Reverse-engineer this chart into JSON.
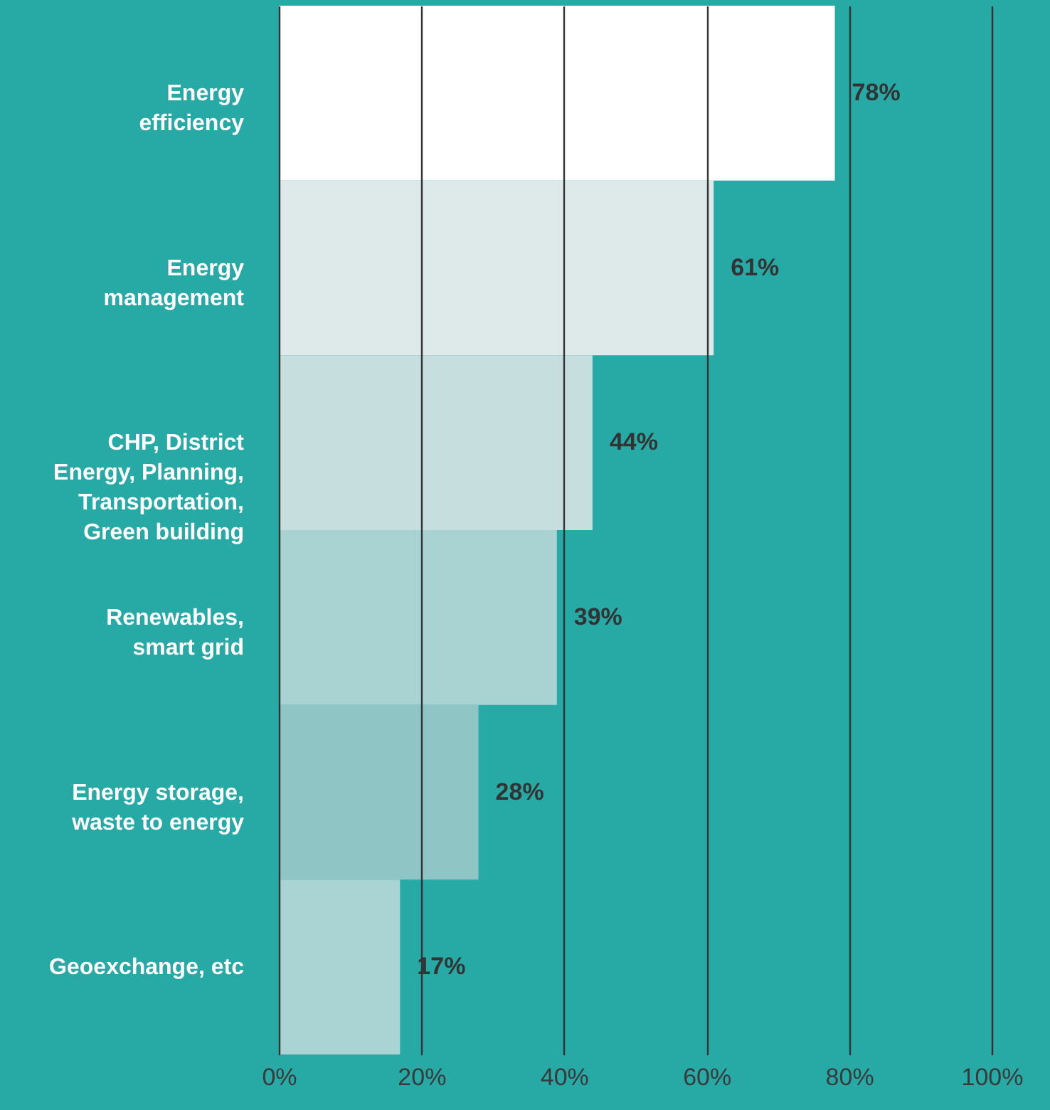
{
  "chart_data": {
    "type": "bar",
    "orientation": "horizontal",
    "categories": [
      "Energy\nefficiency",
      "Energy\nmanagement",
      "CHP, District\nEnergy, Planning,\nTransportation,\nGreen building",
      "Renewables,\nsmart grid",
      "Energy storage,\nwaste to energy",
      "Geoexchange, etc"
    ],
    "values": [
      78,
      61,
      44,
      39,
      28,
      17
    ],
    "colors": [
      "#ffffff",
      "#deeaea",
      "#c6dfde",
      "#a9d3d2",
      "#8fc5c4",
      "#aad4d3"
    ],
    "value_labels": [
      "78%",
      "61%",
      "44%",
      "39%",
      "28%",
      "17%"
    ],
    "xlim": [
      0,
      100
    ],
    "xticks": [
      {
        "value": 0,
        "label": "0%"
      },
      {
        "value": 20,
        "label": "20%"
      },
      {
        "value": 40,
        "label": "40%"
      },
      {
        "value": 60,
        "label": "60%"
      },
      {
        "value": 80,
        "label": "80%"
      },
      {
        "value": 100,
        "label": "100%"
      }
    ],
    "grid": "x"
  }
}
